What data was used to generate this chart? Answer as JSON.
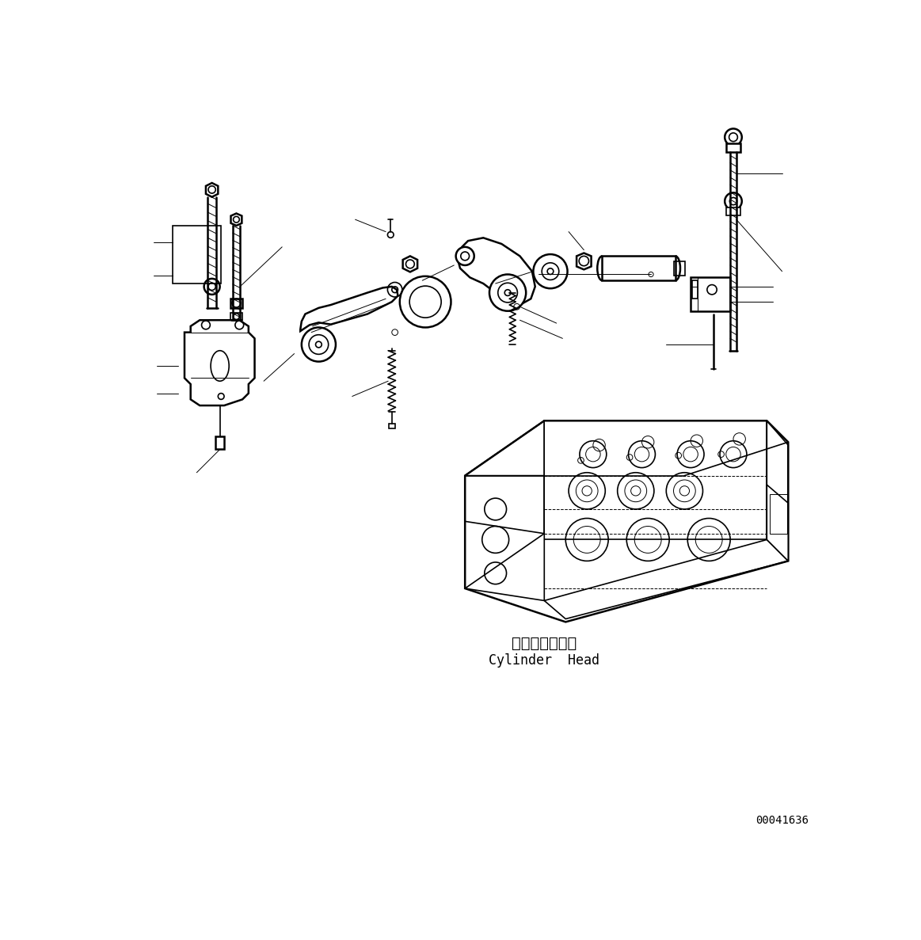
{
  "bg_color": "#ffffff",
  "line_color": "#000000",
  "fig_width": 11.63,
  "fig_height": 11.87,
  "label_japanese": "シリンダヘッド",
  "label_english": "Cylinder  Head",
  "part_number": "00041636",
  "lw_main": 1.2,
  "lw_thin": 0.7,
  "lw_thick": 1.8
}
